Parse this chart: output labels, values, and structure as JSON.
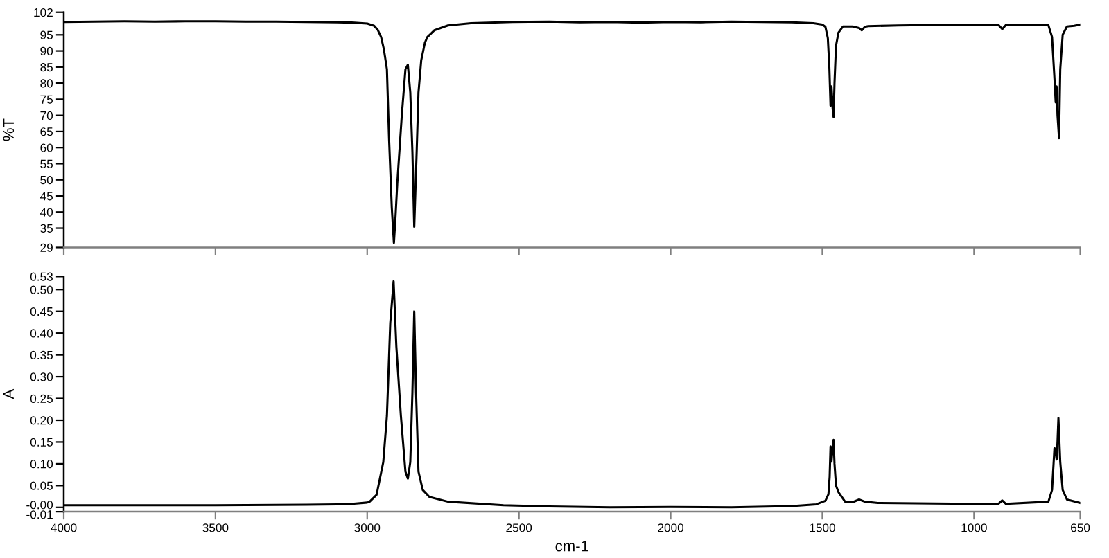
{
  "chart_data": [
    {
      "type": "line",
      "ylabel": "%T",
      "xlim": [
        4000,
        650
      ],
      "xticks": [
        4000,
        3500,
        3000,
        2500,
        2000,
        1500,
        1000,
        650
      ],
      "ylim": [
        29,
        102
      ],
      "yticks": [
        29,
        35,
        40,
        45,
        50,
        55,
        60,
        65,
        70,
        75,
        80,
        85,
        90,
        95,
        102
      ],
      "tick_labels": "y",
      "marker": "none",
      "line_style": "solid",
      "series": [
        {
          "color": "#000000",
          "x": [
            4000,
            3900,
            3800,
            3700,
            3600,
            3500,
            3400,
            3300,
            3200,
            3100,
            3050,
            3000,
            2977,
            2965,
            2954,
            2945,
            2935,
            2928,
            2919,
            2912,
            2907,
            2901,
            2886,
            2874,
            2866,
            2858,
            2851,
            2845,
            2837,
            2831,
            2822,
            2810,
            2802,
            2779,
            2734,
            2658,
            2521,
            2400,
            2300,
            2200,
            2100,
            2000,
            1900,
            1800,
            1700,
            1600,
            1530,
            1500,
            1490,
            1482,
            1477,
            1473,
            1470,
            1466,
            1463,
            1460,
            1455,
            1447,
            1432,
            1400,
            1379,
            1370,
            1360,
            1349,
            1250,
            1166,
            1000,
            920,
            907,
            895,
            862,
            800,
            755,
            743,
            735,
            731,
            728,
            725,
            720,
            716,
            708,
            694,
            670,
            650
          ],
          "values": [
            99.0,
            99.1,
            99.2,
            99.1,
            99.2,
            99.2,
            99.1,
            99.1,
            99.0,
            98.9,
            98.8,
            98.5,
            97.8,
            96.5,
            94.3,
            90.5,
            84.3,
            62.9,
            41.4,
            30.4,
            38,
            48.7,
            70,
            84.3,
            85.7,
            77.1,
            58.6,
            35.4,
            58.6,
            77.1,
            87.1,
            92.5,
            94.3,
            96.4,
            97.9,
            98.6,
            99.0,
            99.1,
            98.9,
            99.0,
            98.8,
            99.0,
            98.9,
            99.1,
            99.0,
            98.9,
            98.6,
            98.2,
            97.5,
            94,
            85,
            73,
            79,
            72,
            69.5,
            80,
            91.6,
            95.7,
            97.6,
            97.6,
            97.1,
            96.4,
            97.5,
            97.7,
            97.9,
            98.0,
            98.1,
            98.1,
            96.8,
            98.1,
            98.2,
            98.2,
            98.0,
            94.3,
            81.4,
            74,
            79,
            70,
            62.9,
            84.3,
            95,
            97.6,
            97.8,
            98.2
          ]
        }
      ]
    },
    {
      "type": "line",
      "xlabel": "cm-1",
      "ylabel": "A",
      "xlim": [
        4000,
        650
      ],
      "xticks": [
        4000,
        3500,
        3000,
        2500,
        2000,
        1500,
        1000,
        650
      ],
      "ylim": [
        -0.01,
        0.53
      ],
      "yticks": [
        -0.01,
        {
          "value": 0,
          "label": "-0.00"
        },
        0.05,
        {
          "value": 0.1,
          "label": "0.10"
        },
        0.15,
        {
          "value": 0.2,
          "label": "0.20"
        },
        0.25,
        {
          "value": 0.3,
          "label": "0.30"
        },
        0.35,
        {
          "value": 0.4,
          "label": "0.40"
        },
        0.45,
        {
          "value": 0.5,
          "label": "0.50"
        },
        0.53
      ],
      "marker": "none",
      "line_style": "solid",
      "series": [
        {
          "color": "#000000",
          "x": [
            4000,
            3500,
            3200,
            3100,
            3050,
            3000,
            2992,
            2969,
            2947,
            2935,
            2924,
            2913,
            2904,
            2889,
            2874,
            2866,
            2858,
            2851,
            2845,
            2839,
            2831,
            2817,
            2795,
            2734,
            2551,
            2400,
            2200,
            2000,
            1800,
            1600,
            1520,
            1490,
            1480,
            1476,
            1473,
            1470,
            1466,
            1463,
            1460,
            1455,
            1447,
            1425,
            1400,
            1379,
            1360,
            1317,
            1013,
            920,
            907,
            895,
            755,
            743,
            735,
            731,
            728,
            725,
            722,
            716,
            708,
            694,
            650
          ],
          "values": [
            0.005,
            0.005,
            0.006,
            0.007,
            0.008,
            0.011,
            0.013,
            0.029,
            0.104,
            0.21,
            0.423,
            0.519,
            0.37,
            0.21,
            0.082,
            0.066,
            0.104,
            0.264,
            0.45,
            0.264,
            0.082,
            0.04,
            0.024,
            0.013,
            0.005,
            0.002,
            0.0,
            0.001,
            0.0,
            0.003,
            0.007,
            0.015,
            0.03,
            0.07,
            0.14,
            0.105,
            0.14,
            0.155,
            0.1,
            0.05,
            0.035,
            0.013,
            0.012,
            0.018,
            0.013,
            0.01,
            0.008,
            0.008,
            0.016,
            0.008,
            0.013,
            0.04,
            0.136,
            0.13,
            0.11,
            0.15,
            0.205,
            0.104,
            0.04,
            0.018,
            0.01
          ]
        }
      ]
    }
  ]
}
